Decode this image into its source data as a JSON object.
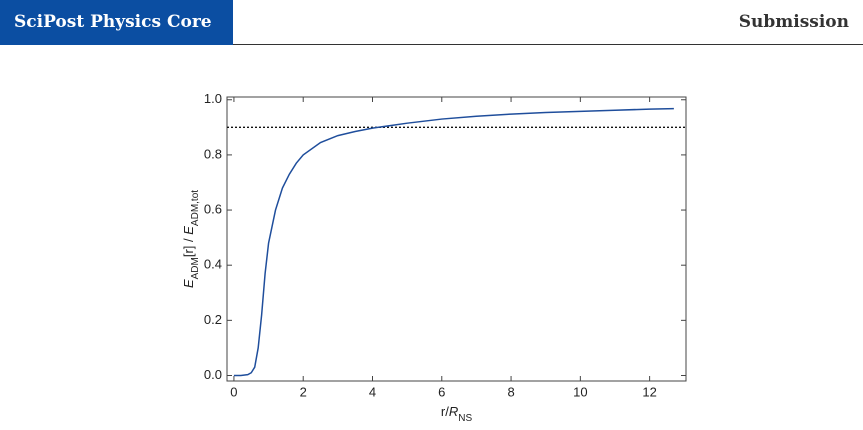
{
  "header": {
    "title": "SciPost Physics Core",
    "right": "Submission"
  },
  "chart_data": {
    "type": "line",
    "xlabel": [
      {
        "text": "r/",
        "italic": false,
        "sub": false
      },
      {
        "text": "R",
        "italic": true,
        "sub": false
      },
      {
        "text": "NS",
        "italic": false,
        "sub": true
      }
    ],
    "ylabel": [
      {
        "text": "E",
        "italic": true,
        "sub": false
      },
      {
        "text": "ADM",
        "italic": false,
        "sub": true
      },
      {
        "text": "[r] / ",
        "italic": false,
        "sub": false
      },
      {
        "text": "E",
        "italic": true,
        "sub": false
      },
      {
        "text": "ADM,tot",
        "italic": false,
        "sub": true
      }
    ],
    "x": [
      0,
      0.2,
      0.4,
      0.5,
      0.6,
      0.7,
      0.8,
      0.9,
      1.0,
      1.2,
      1.4,
      1.6,
      1.8,
      2.0,
      2.5,
      3,
      3.5,
      4,
      5,
      6,
      7,
      8,
      9,
      10,
      11,
      12,
      12.7
    ],
    "series": [
      {
        "name": "E_ADM",
        "color": "#1f4e9c",
        "values": [
          0,
          0,
          0.003,
          0.01,
          0.03,
          0.1,
          0.22,
          0.37,
          0.48,
          0.6,
          0.68,
          0.73,
          0.77,
          0.8,
          0.845,
          0.87,
          0.885,
          0.897,
          0.915,
          0.93,
          0.94,
          0.948,
          0.954,
          0.958,
          0.962,
          0.966,
          0.968
        ]
      }
    ],
    "hline": 0.9,
    "xlim": [
      -0.2,
      13.05
    ],
    "ylim": [
      -0.02,
      1.01
    ],
    "xticks": [
      0,
      2,
      4,
      6,
      8,
      10,
      12
    ],
    "yticks": [
      {
        "value": 0,
        "label": "0.0"
      },
      0.2,
      0.4,
      0.6,
      0.8,
      {
        "value": 1,
        "label": "1.0"
      }
    ]
  }
}
